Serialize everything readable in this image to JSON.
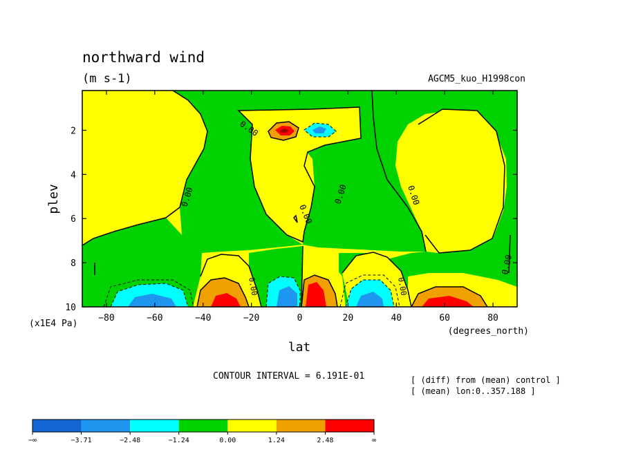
{
  "chart_data": {
    "type": "heatmap",
    "title": "northward wind",
    "units": "(m s-1)",
    "dataset": "AGCM5_kuo_H1998con",
    "xlabel": "lat",
    "x_units": "(degrees_north)",
    "ylabel": "plev",
    "y_units": "(x1E4 Pa)",
    "xlim": [
      -90,
      90
    ],
    "ylim": [
      0.2,
      10
    ],
    "y_reversed": true,
    "x_ticks": [
      -80,
      -60,
      -40,
      -20,
      0,
      20,
      40,
      60,
      80
    ],
    "y_ticks": [
      2,
      4,
      6,
      8,
      10
    ],
    "contour_interval_text": "CONTOUR INTERVAL = 6.191E-01",
    "contour_label": "0.00",
    "notes": [
      "[ (diff) from (mean) control ]",
      "[ (mean) lon:0..357.188 ]"
    ],
    "colorbar": {
      "levels": [
        "-∞",
        "-3.71",
        "-2.48",
        "-1.24",
        "0.00",
        "1.24",
        "2.48",
        "∞"
      ],
      "colors": [
        "#1464d2",
        "#1e96f0",
        "#00ffff",
        "#00d200",
        "#ffff00",
        "#f0a000",
        "#ff0000"
      ]
    },
    "contour_colors": {
      "neg_strong": "#1e96f0",
      "neg_mid": "#00ffff",
      "neutral_neg": "#00d200",
      "neutral_pos": "#ffff00",
      "pos_mid": "#f0a000",
      "pos_strong": "#ff0000",
      "very_strong": "#a00000"
    }
  }
}
